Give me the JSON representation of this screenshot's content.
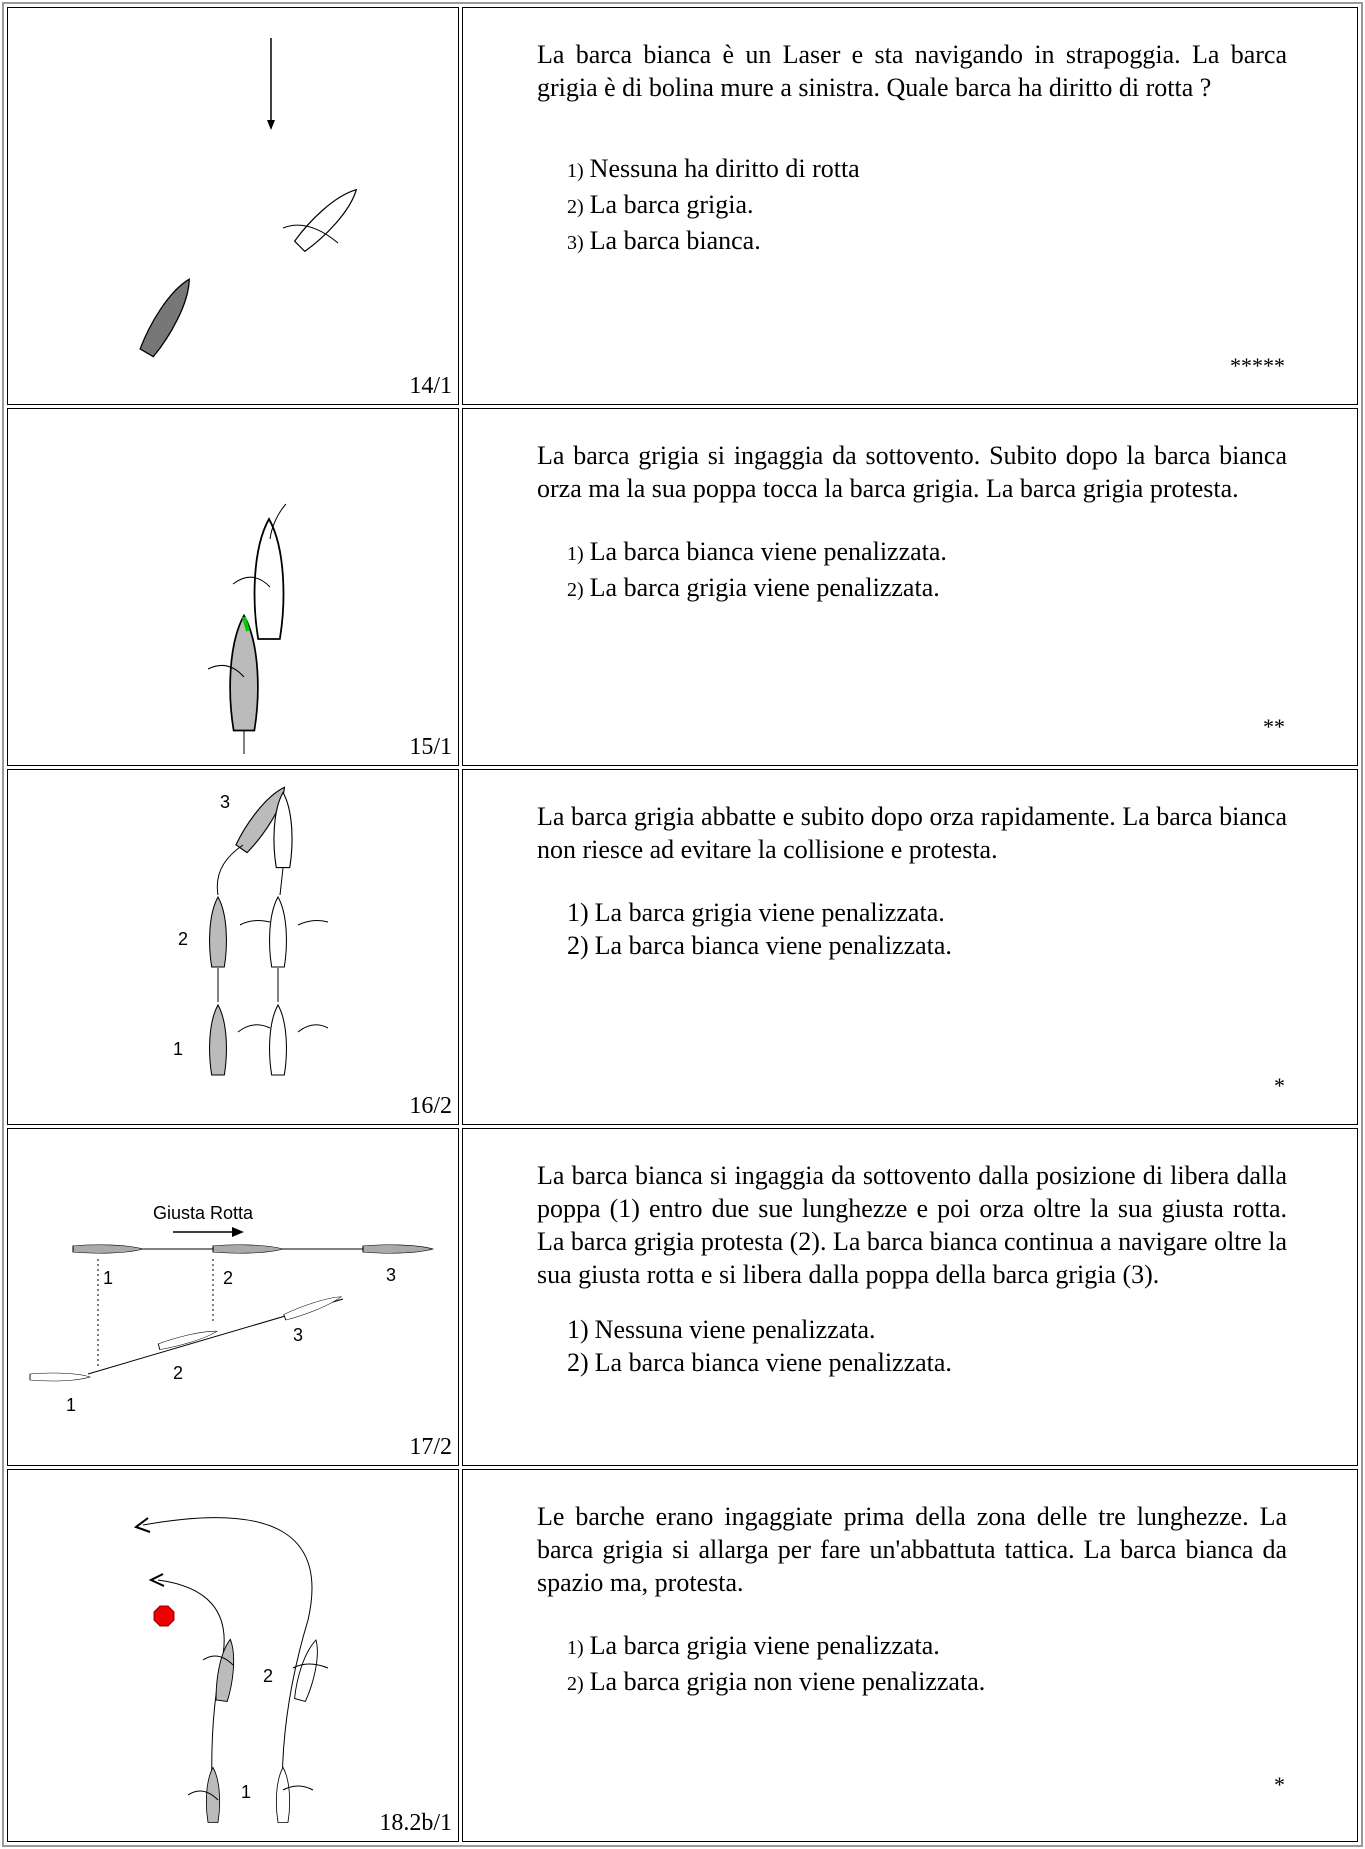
{
  "rows": [
    {
      "code": "14/1",
      "question": "La barca bianca è un Laser e sta navigando in strapoggia. La barca grigia è di bolina mure a sinistra. Quale barca ha diritto di rotta ?",
      "options": [
        {
          "number": "1)",
          "text": "Nessuna ha diritto di rotta"
        },
        {
          "number": "2)",
          "text": "La barca grigia."
        },
        {
          "number": "3)",
          "text": "La barca bianca."
        }
      ],
      "rating": "*****"
    },
    {
      "code": "15/1",
      "question": "La barca  grigia si  ingaggia  da  sottovento. Subito dopo la barca  bianca orza ma la sua poppa tocca la barca grigia. La barca grigia protesta.",
      "options": [
        {
          "number": "1)",
          "text": "La barca bianca viene penalizzata."
        },
        {
          "number": "2)",
          "text": "La barca grigia viene penalizzata."
        }
      ],
      "rating": "**"
    },
    {
      "code": "16/2",
      "question": "La barca grigia abbatte e subito dopo orza rapidamente. La barca bianca non riesce ad evitare la collisione e protesta.",
      "options": [
        {
          "number": "1)",
          "text": "La barca grigia viene penalizzata."
        },
        {
          "number": "2)",
          "text": "La barca bianca viene penalizzata."
        }
      ],
      "rating": "*",
      "figure": {
        "labels": [
          "3",
          "2",
          "1"
        ]
      }
    },
    {
      "code": "17/2",
      "question": "La barca bianca  si ingaggia da sottovento dalla posizione di libera dalla poppa (1) entro due sue lunghezze e poi orza oltre la sua giusta rotta. La barca grigia protesta (2). La barca bianca continua a navigare oltre la sua giusta rotta  e si libera dalla poppa della barca grigia (3).",
      "options": [
        {
          "number": "1)",
          "text": "Nessuna viene penalizzata."
        },
        {
          "number": "2)",
          "text": "La barca bianca viene penalizzata."
        }
      ],
      "figure": {
        "arrow_label": "Giusta Rotta",
        "gray_labels": [
          "1",
          "2",
          "3"
        ],
        "white_labels": [
          "1",
          "2",
          "3"
        ]
      }
    },
    {
      "code": "18.2b/1",
      "question": "Le barche erano  ingaggiate prima della zona delle tre lunghezze. La barca grigia si allarga per fare un'abbattuta tattica. La barca bianca da spazio ma, protesta.",
      "options": [
        {
          "number": "1)",
          "text": "La barca grigia viene penalizzata."
        },
        {
          "number": "2)",
          "text": "La barca grigia non viene penalizzata."
        }
      ],
      "rating": "*",
      "figure": {
        "labels": [
          "2",
          "1"
        ]
      }
    }
  ]
}
